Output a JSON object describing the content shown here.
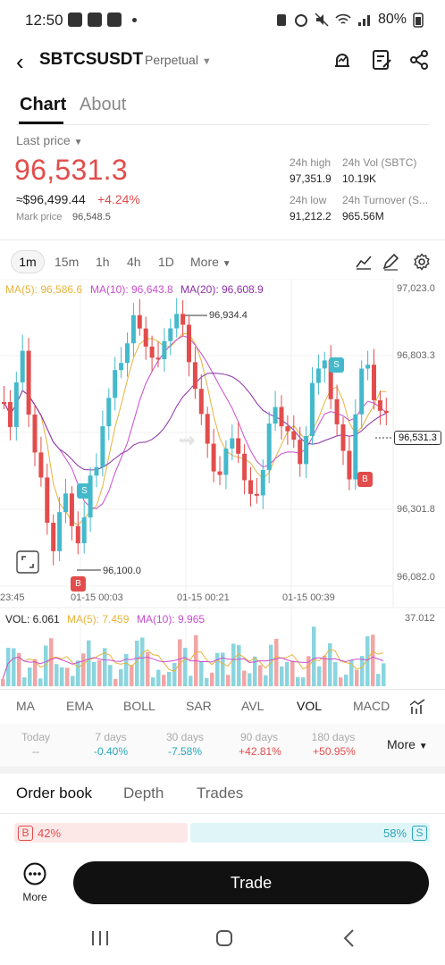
{
  "status_bar": {
    "time": "12:50",
    "battery": "80%"
  },
  "header": {
    "symbol": "SBTCSUSDT",
    "contract_type": "Perpetual",
    "icons": [
      "back-arrow-icon",
      "price-alert-icon",
      "notes-icon",
      "share-icon"
    ]
  },
  "page_tabs": [
    {
      "label": "Chart",
      "active": true
    },
    {
      "label": "About",
      "active": false
    }
  ],
  "price_panel": {
    "last_price_label": "Last price",
    "last_price": "96,531.3",
    "usd_value": "≈$96,499.44",
    "change_pct": "+4.24%",
    "mark_price_label": "Mark price",
    "mark_price": "96,548.5",
    "stats": {
      "high_label": "24h high",
      "high_value": "97,351.9",
      "vol_label": "24h Vol (SBTC)",
      "vol_value": "10.19K",
      "low_label": "24h low",
      "low_value": "91,212.2",
      "turnover_label": "24h Turnover (S...",
      "turnover_value": "965.56M"
    }
  },
  "timeframes": {
    "items": [
      "1m",
      "15m",
      "1h",
      "4h",
      "1D"
    ],
    "selected": "1m",
    "more_label": "More"
  },
  "chart": {
    "ma_legend": {
      "ma5": "MA(5): 96,586.6",
      "ma10": "MA(10): 96,643.8",
      "ma20": "MA(20): 96,608.9"
    },
    "price_axis_labels": [
      "97,023.0",
      "96,803.3",
      "96,301.8",
      "96,082.0"
    ],
    "current_price_tag": "96,531.3",
    "high_marker": "96,934.4",
    "low_marker": "96,100.0",
    "time_labels": [
      "23:45",
      "01-15 00:03",
      "01-15 00:21",
      "01-15 00:39"
    ],
    "volume_legend": {
      "vol": "VOL: 6.061",
      "ma5": "MA(5): 7.459",
      "ma10": "MA(10): 9.965"
    },
    "volume_axis_max": "37.012",
    "trade_markers": [
      "B",
      "S",
      "S",
      "B"
    ],
    "colors": {
      "up": "#44b9cc",
      "down": "#e24c4c",
      "ma5": "#e7b33c",
      "ma10": "#c94ccf",
      "ma20": "#8d2fa8"
    }
  },
  "chart_data": {
    "type": "candlestick",
    "interval": "1m",
    "series": [
      {
        "name": "MA(5)",
        "last": 96586.6
      },
      {
        "name": "MA(10)",
        "last": 96643.8
      },
      {
        "name": "MA(20)",
        "last": 96608.9
      }
    ],
    "y_ticks": [
      97023.0,
      96803.3,
      96301.8,
      96082.0
    ],
    "high": 96934.4,
    "low": 96100.0,
    "last": 96531.3,
    "volume_max": 37.012
  },
  "indicators": {
    "items": [
      "MA",
      "EMA",
      "BOLL",
      "SAR",
      "AVL",
      "VOL",
      "MACD"
    ],
    "selected": "VOL"
  },
  "performance": [
    {
      "label": "Today",
      "value": "--",
      "dir": "none"
    },
    {
      "label": "7 days",
      "value": "-0.40%",
      "dir": "down"
    },
    {
      "label": "30 days",
      "value": "-7.58%",
      "dir": "down"
    },
    {
      "label": "90 days",
      "value": "+42.81%",
      "dir": "up"
    },
    {
      "label": "180 days",
      "value": "+50.95%",
      "dir": "up"
    }
  ],
  "performance_more": "More",
  "order_tabs": {
    "items": [
      "Order book",
      "Depth",
      "Trades"
    ],
    "selected": "Order book"
  },
  "ratio": {
    "buy_badge": "B",
    "buy_pct": "42%",
    "sell_badge": "S",
    "sell_pct": "58%"
  },
  "bottom": {
    "more_label": "More",
    "trade_label": "Trade"
  }
}
